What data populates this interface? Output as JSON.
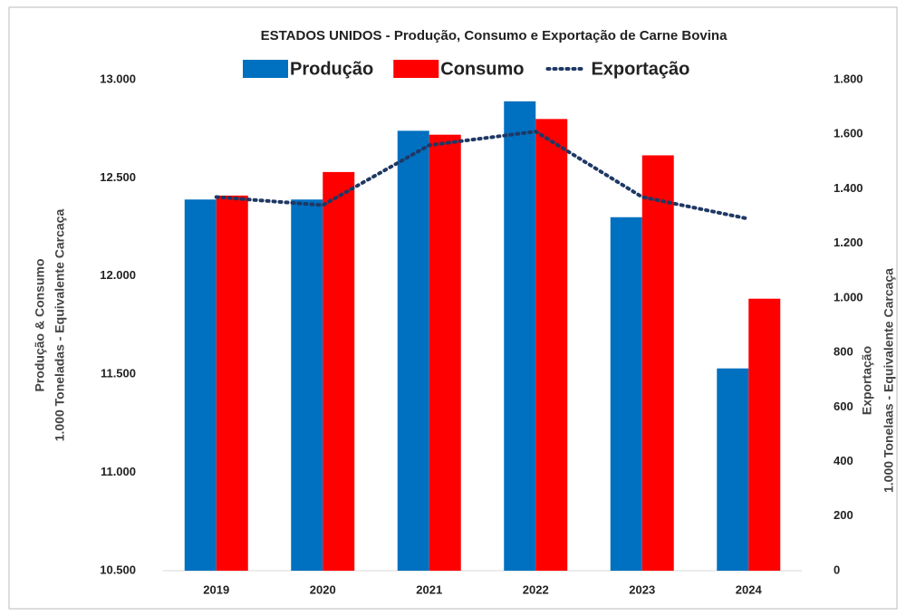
{
  "chart_data": {
    "type": "bar_line",
    "title": "ESTADOS UNIDOS - Produção, Consumo e Exportação de Carne Bovina",
    "y_label": [
      "Produção & Consumo",
      "1.000 Toneladas - Equivalente Carcaça"
    ],
    "y2_label": [
      "Exportação",
      "1.000 Tonelaas - Equivalente Carcaça"
    ],
    "categories": [
      "2019",
      "2020",
      "2021",
      "2022",
      "2023",
      "2024"
    ],
    "series": [
      {
        "name": "Produção",
        "type": "bar",
        "color": "#0070c0",
        "values": [
          12390,
          12390,
          12740,
          12890,
          12300,
          11530
        ]
      },
      {
        "name": "Consumo",
        "type": "bar",
        "color": "#ff0000",
        "values": [
          12410,
          12530,
          12720,
          12800,
          12615,
          11885
        ]
      },
      {
        "name": "Exportação",
        "type": "line",
        "axis": "y2",
        "color": "#1f3864",
        "values": [
          1370,
          1340,
          1560,
          1610,
          1370,
          1290
        ]
      }
    ],
    "ylim": [
      10500,
      13000
    ],
    "yticks": [
      {
        "value": 10500,
        "label": "10.500"
      },
      {
        "value": 11000,
        "label": "11.000"
      },
      {
        "value": 11500,
        "label": "11.500"
      },
      {
        "value": 12000,
        "label": "12.000"
      },
      {
        "value": 12500,
        "label": "12.500"
      },
      {
        "value": 13000,
        "label": "13.000"
      }
    ],
    "y2lim": [
      0,
      1800
    ],
    "y2ticks": [
      0,
      200,
      400,
      600,
      800,
      {
        "value": 1000,
        "label": "1.000"
      },
      {
        "value": 1200,
        "label": "1.200"
      },
      {
        "value": 1400,
        "label": "1.400"
      },
      {
        "value": 1600,
        "label": "1.600"
      },
      {
        "value": 1800,
        "label": "1.800"
      }
    ]
  }
}
